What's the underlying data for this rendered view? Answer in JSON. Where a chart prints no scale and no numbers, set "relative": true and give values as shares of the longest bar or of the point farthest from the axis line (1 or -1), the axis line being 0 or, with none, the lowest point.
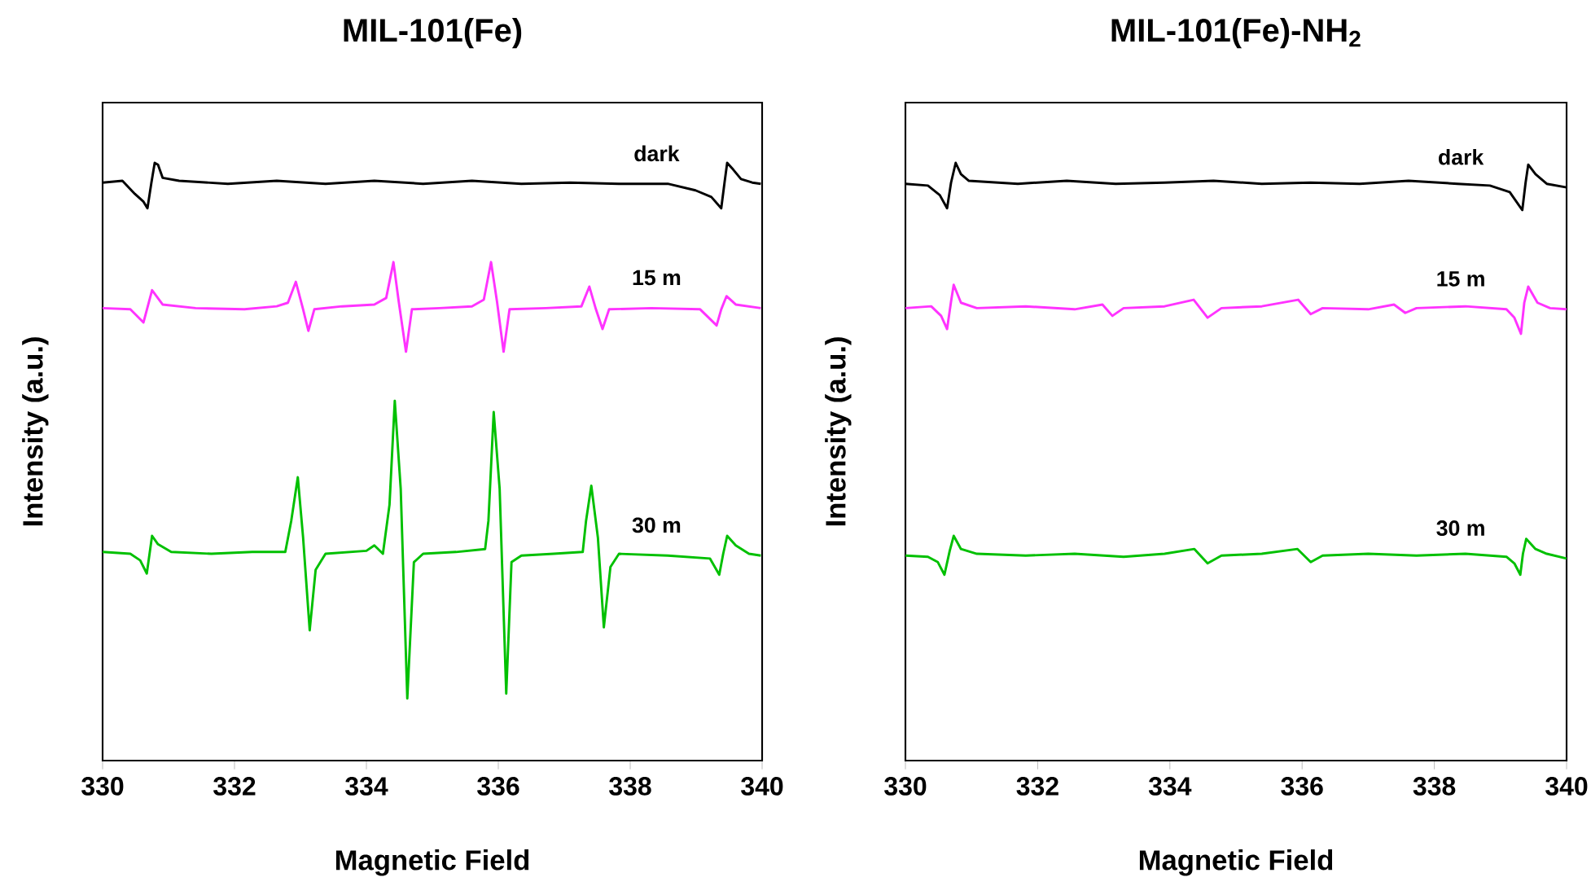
{
  "chart_data": [
    {
      "type": "line",
      "title": "MIL-101(Fe)",
      "xlabel": "Magnetic Field",
      "ylabel": "Intensity (a.u.)",
      "relative": true,
      "xlim": [
        330,
        340
      ],
      "xticks": [
        330,
        332,
        334,
        336,
        338,
        340
      ],
      "grid": false,
      "legend": false,
      "series": [
        {
          "name": "dark",
          "color": "#000000",
          "x": [
            330.0,
            330.3,
            330.49,
            330.62,
            330.68,
            330.74,
            330.79,
            330.84,
            330.91,
            331.16,
            331.9,
            332.64,
            333.38,
            334.12,
            334.86,
            335.6,
            336.35,
            337.09,
            337.83,
            338.57,
            338.99,
            339.23,
            339.38,
            339.43,
            339.47,
            339.56,
            339.68,
            339.85,
            339.98
          ],
          "values": [
            0.967,
            0.97,
            0.948,
            0.935,
            0.924,
            0.967,
            1.0,
            0.997,
            0.975,
            0.97,
            0.965,
            0.97,
            0.965,
            0.97,
            0.965,
            0.97,
            0.965,
            0.967,
            0.965,
            0.965,
            0.954,
            0.943,
            0.924,
            0.967,
            1.0,
            0.989,
            0.973,
            0.967,
            0.965
          ]
        },
        {
          "name": "15 m",
          "color": "#ff33ff",
          "x": [
            330.0,
            330.42,
            330.62,
            330.75,
            330.91,
            331.41,
            332.15,
            332.64,
            332.81,
            332.93,
            333.04,
            333.12,
            333.21,
            333.63,
            334.12,
            334.3,
            334.41,
            334.49,
            334.6,
            334.69,
            335.11,
            335.6,
            335.78,
            335.89,
            335.98,
            336.08,
            336.17,
            336.72,
            337.26,
            337.38,
            337.48,
            337.58,
            337.68,
            338.32,
            339.06,
            339.31,
            339.38,
            339.46,
            339.6,
            339.98
          ],
          "values": [
            0.757,
            0.755,
            0.733,
            0.787,
            0.763,
            0.757,
            0.755,
            0.76,
            0.766,
            0.801,
            0.755,
            0.719,
            0.755,
            0.76,
            0.763,
            0.774,
            0.834,
            0.768,
            0.684,
            0.755,
            0.757,
            0.76,
            0.771,
            0.834,
            0.768,
            0.684,
            0.755,
            0.757,
            0.76,
            0.793,
            0.755,
            0.722,
            0.755,
            0.757,
            0.755,
            0.728,
            0.755,
            0.777,
            0.763,
            0.757
          ]
        },
        {
          "name": "30 m",
          "color": "#00c000",
          "x": [
            330.0,
            330.42,
            330.57,
            330.67,
            330.75,
            330.84,
            331.04,
            331.65,
            332.27,
            332.77,
            332.86,
            332.96,
            333.04,
            333.14,
            333.23,
            333.38,
            334.0,
            334.12,
            334.25,
            334.35,
            334.43,
            334.52,
            334.62,
            334.72,
            334.86,
            335.36,
            335.8,
            335.85,
            335.93,
            336.02,
            336.12,
            336.2,
            336.35,
            336.84,
            337.28,
            337.33,
            337.41,
            337.51,
            337.6,
            337.7,
            337.83,
            338.57,
            339.21,
            339.35,
            339.41,
            339.47,
            339.6,
            339.8,
            339.98
          ],
          "values": [
            0.349,
            0.346,
            0.335,
            0.313,
            0.376,
            0.362,
            0.349,
            0.346,
            0.349,
            0.349,
            0.401,
            0.474,
            0.373,
            0.218,
            0.319,
            0.346,
            0.351,
            0.36,
            0.346,
            0.428,
            0.602,
            0.455,
            0.104,
            0.332,
            0.346,
            0.349,
            0.354,
            0.401,
            0.583,
            0.455,
            0.112,
            0.332,
            0.343,
            0.346,
            0.349,
            0.401,
            0.46,
            0.373,
            0.223,
            0.324,
            0.346,
            0.343,
            0.338,
            0.311,
            0.346,
            0.376,
            0.36,
            0.346,
            0.343
          ]
        }
      ]
    },
    {
      "type": "line",
      "title": "MIL-101(Fe)-NH$_{2}$",
      "xlabel": "Magnetic Field",
      "ylabel": "Intensity (a.u.)",
      "relative": true,
      "xlim": [
        330,
        340
      ],
      "xticks": [
        330,
        332,
        334,
        336,
        338,
        340
      ],
      "grid": false,
      "legend": false,
      "series": [
        {
          "name": "dark",
          "color": "#000000",
          "x": [
            330.0,
            330.34,
            330.52,
            330.63,
            330.69,
            330.76,
            330.84,
            330.96,
            331.7,
            332.44,
            333.18,
            333.92,
            334.66,
            335.39,
            336.13,
            336.87,
            337.61,
            338.35,
            338.84,
            339.14,
            339.33,
            339.38,
            339.42,
            339.53,
            339.7,
            340.0
          ],
          "values": [
            0.965,
            0.962,
            0.946,
            0.924,
            0.967,
            1.0,
            0.981,
            0.97,
            0.965,
            0.97,
            0.965,
            0.967,
            0.97,
            0.965,
            0.967,
            0.965,
            0.97,
            0.965,
            0.962,
            0.951,
            0.921,
            0.967,
            0.997,
            0.981,
            0.965,
            0.959
          ]
        },
        {
          "name": "15 m",
          "color": "#ff33ff",
          "x": [
            330.0,
            330.39,
            330.54,
            330.63,
            330.69,
            330.73,
            330.84,
            331.08,
            331.82,
            332.56,
            332.98,
            333.13,
            333.3,
            333.92,
            334.36,
            334.57,
            334.78,
            335.39,
            335.94,
            336.13,
            336.31,
            337.0,
            337.39,
            337.56,
            337.73,
            338.47,
            339.09,
            339.21,
            339.31,
            339.36,
            339.42,
            339.56,
            339.75,
            340.0
          ],
          "values": [
            0.757,
            0.76,
            0.744,
            0.722,
            0.768,
            0.796,
            0.766,
            0.757,
            0.76,
            0.755,
            0.763,
            0.744,
            0.757,
            0.76,
            0.771,
            0.741,
            0.757,
            0.76,
            0.771,
            0.747,
            0.757,
            0.755,
            0.763,
            0.749,
            0.757,
            0.76,
            0.755,
            0.741,
            0.714,
            0.766,
            0.793,
            0.766,
            0.757,
            0.755
          ]
        },
        {
          "name": "30 m",
          "color": "#00c000",
          "x": [
            330.0,
            330.34,
            330.49,
            330.59,
            330.67,
            330.73,
            330.84,
            331.08,
            331.82,
            332.56,
            333.3,
            333.92,
            334.37,
            334.57,
            334.78,
            335.39,
            335.93,
            336.13,
            336.31,
            337.0,
            337.73,
            338.47,
            339.09,
            339.21,
            339.3,
            339.34,
            339.39,
            339.53,
            339.7,
            340.0
          ],
          "values": [
            0.343,
            0.341,
            0.332,
            0.311,
            0.351,
            0.376,
            0.354,
            0.346,
            0.343,
            0.346,
            0.341,
            0.346,
            0.354,
            0.33,
            0.343,
            0.346,
            0.354,
            0.332,
            0.343,
            0.346,
            0.343,
            0.346,
            0.341,
            0.33,
            0.311,
            0.346,
            0.371,
            0.354,
            0.346,
            0.338
          ]
        }
      ]
    }
  ]
}
